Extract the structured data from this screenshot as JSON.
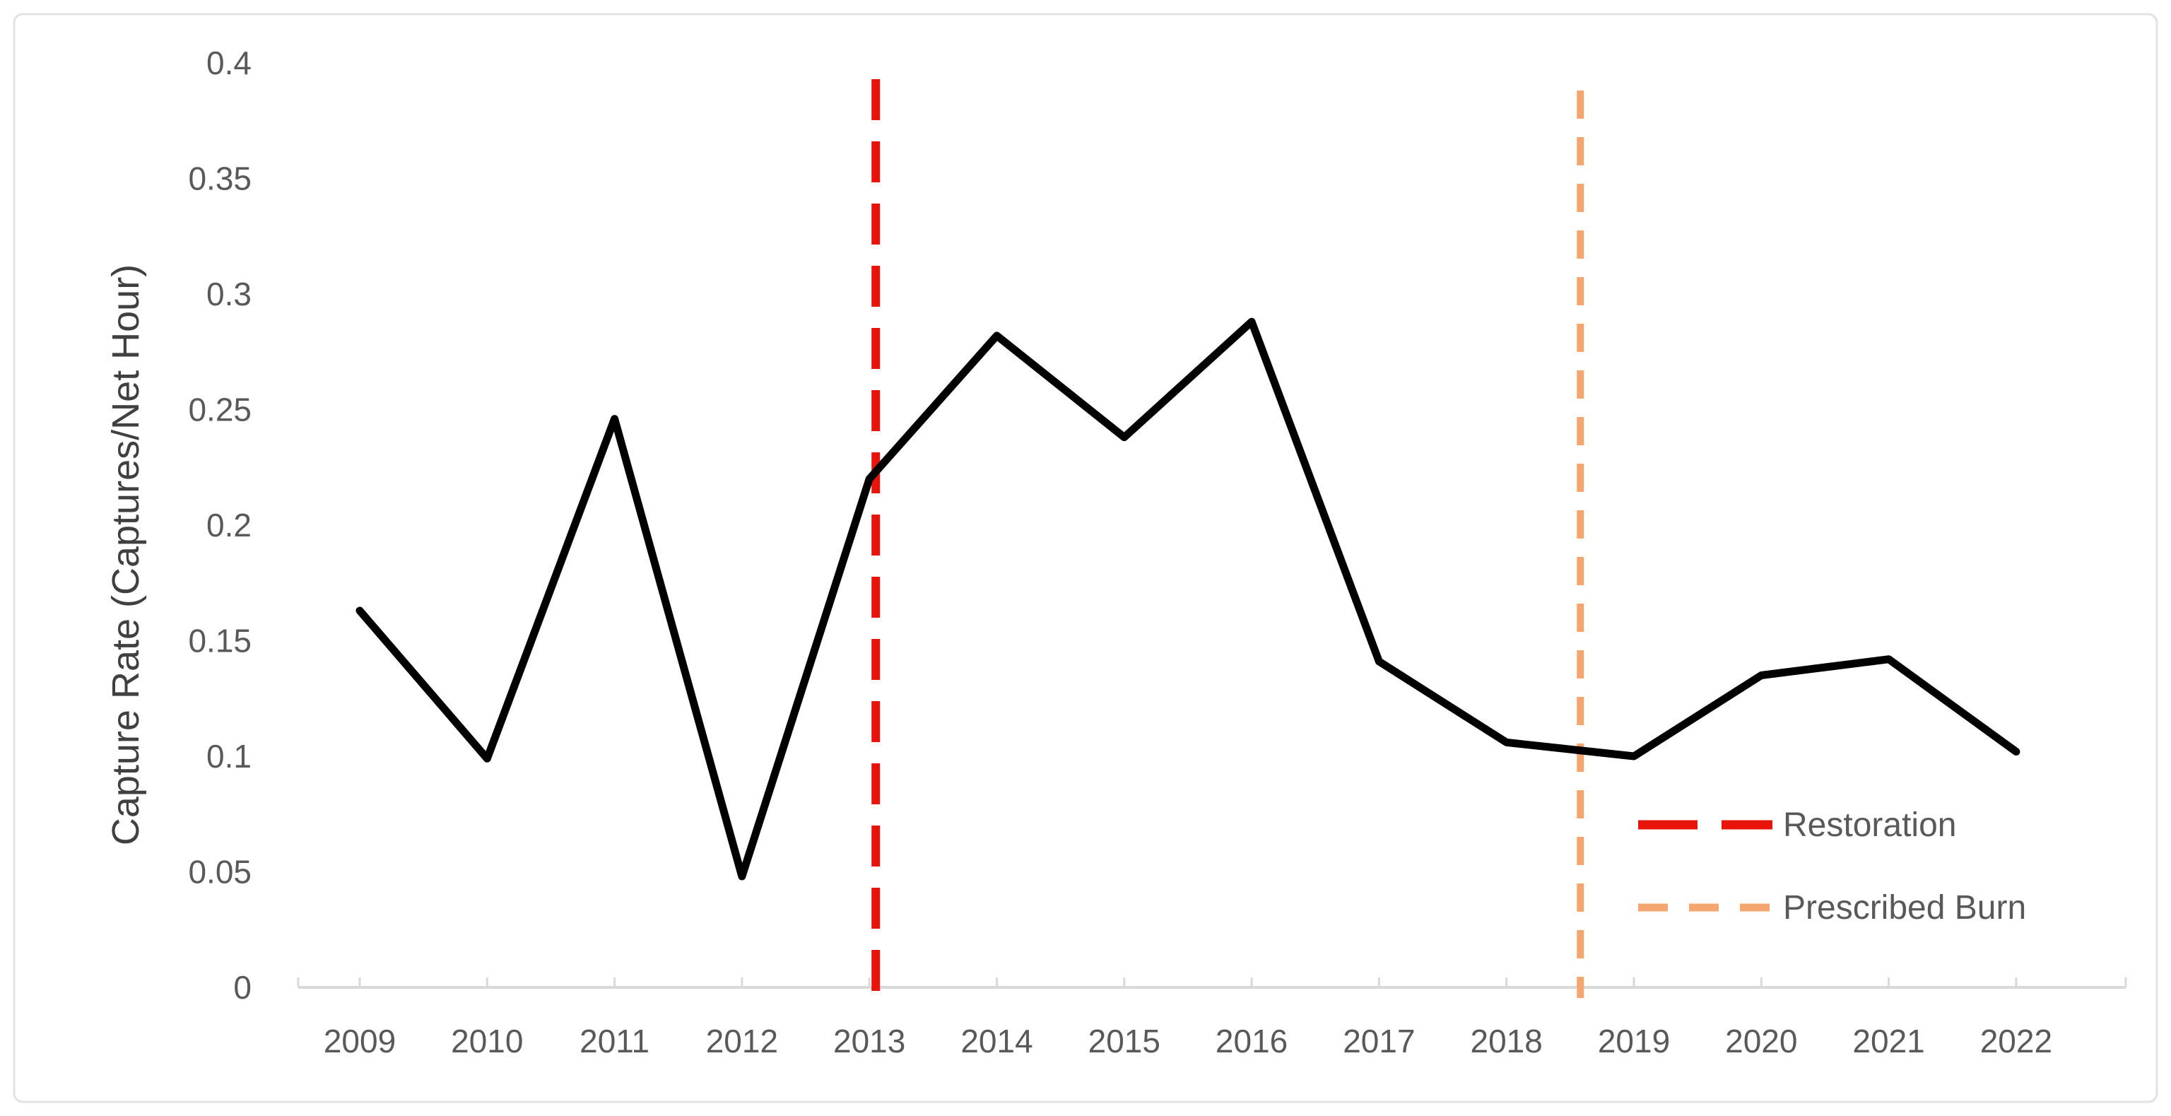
{
  "chart_data": {
    "type": "line",
    "title": "",
    "categories": [
      "2009",
      "2010",
      "2011",
      "2012",
      "2013",
      "2014",
      "2015",
      "2016",
      "2017",
      "2018",
      "2019",
      "2020",
      "2021",
      "2022"
    ],
    "series": [
      {
        "name": "Capture Rate",
        "color": "#000000",
        "values": [
          0.163,
          0.099,
          0.246,
          0.048,
          0.22,
          0.282,
          0.238,
          0.288,
          0.141,
          0.106,
          0.1,
          0.135,
          0.142,
          0.102
        ]
      }
    ],
    "xlabel": "",
    "ylabel": "Capture Rate (Captures/Net Hour)",
    "ylim": [
      0,
      0.4
    ],
    "ytick_step": 0.05,
    "ytick_labels": [
      "0",
      "0.05",
      "0.1",
      "0.15",
      "0.2",
      "0.25",
      "0.3",
      "0.35",
      "0.4"
    ],
    "grid": false,
    "legend_position": "inside-bottom-right",
    "vlines": [
      {
        "label": "Restoration",
        "x_year": 2013.05,
        "color": "#E8140C",
        "style": "long-dash"
      },
      {
        "label": "Prescribed Burn",
        "x_year": 2018.58,
        "color": "#F5A56F",
        "style": "short-dash"
      }
    ],
    "legend": [
      {
        "label": "Restoration",
        "color": "#E8140C",
        "style": "long-dash"
      },
      {
        "label": "Prescribed Burn",
        "color": "#F5A56F",
        "style": "short-dash"
      }
    ],
    "axis_color": "#D9D9D9",
    "tick_text_color": "#595959",
    "title_text_color": "#404040",
    "frame_border_color": "#E2E2E2"
  }
}
